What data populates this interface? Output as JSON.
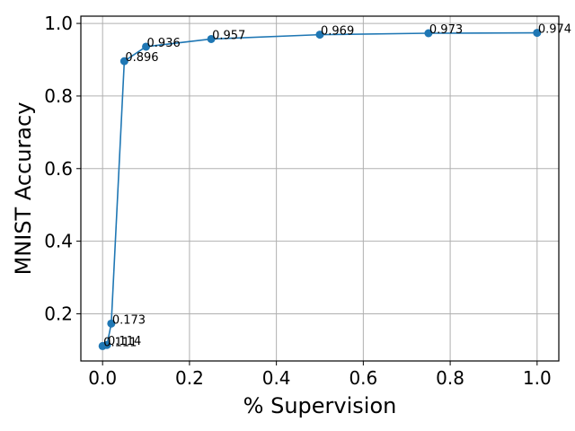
{
  "chart_data": {
    "type": "line",
    "title": "",
    "xlabel": "% Supervision",
    "ylabel": "MNIST Accuracy",
    "xlim": [
      -0.05,
      1.05
    ],
    "ylim": [
      0.07,
      1.02
    ],
    "xticks": [
      0.0,
      0.2,
      0.4,
      0.6,
      0.8,
      1.0
    ],
    "xtick_labels": [
      "0.0",
      "0.2",
      "0.4",
      "0.6",
      "0.8",
      "1.0"
    ],
    "yticks": [
      0.2,
      0.4,
      0.6,
      0.8,
      1.0
    ],
    "ytick_labels": [
      "0.2",
      "0.4",
      "0.6",
      "0.8",
      "1.0"
    ],
    "grid": true,
    "line_color": "#1f77b4",
    "series": [
      {
        "x": [
          0.0,
          0.01,
          0.02,
          0.05,
          0.1,
          0.25,
          0.5,
          0.75,
          1.0
        ],
        "y": [
          0.111,
          0.114,
          0.173,
          0.896,
          0.936,
          0.957,
          0.969,
          0.973,
          0.974
        ],
        "labels": [
          "0.111",
          "0.114",
          "0.173",
          "0.896",
          "0.936",
          "0.957",
          "0.969",
          "0.973",
          "0.974"
        ]
      }
    ]
  }
}
